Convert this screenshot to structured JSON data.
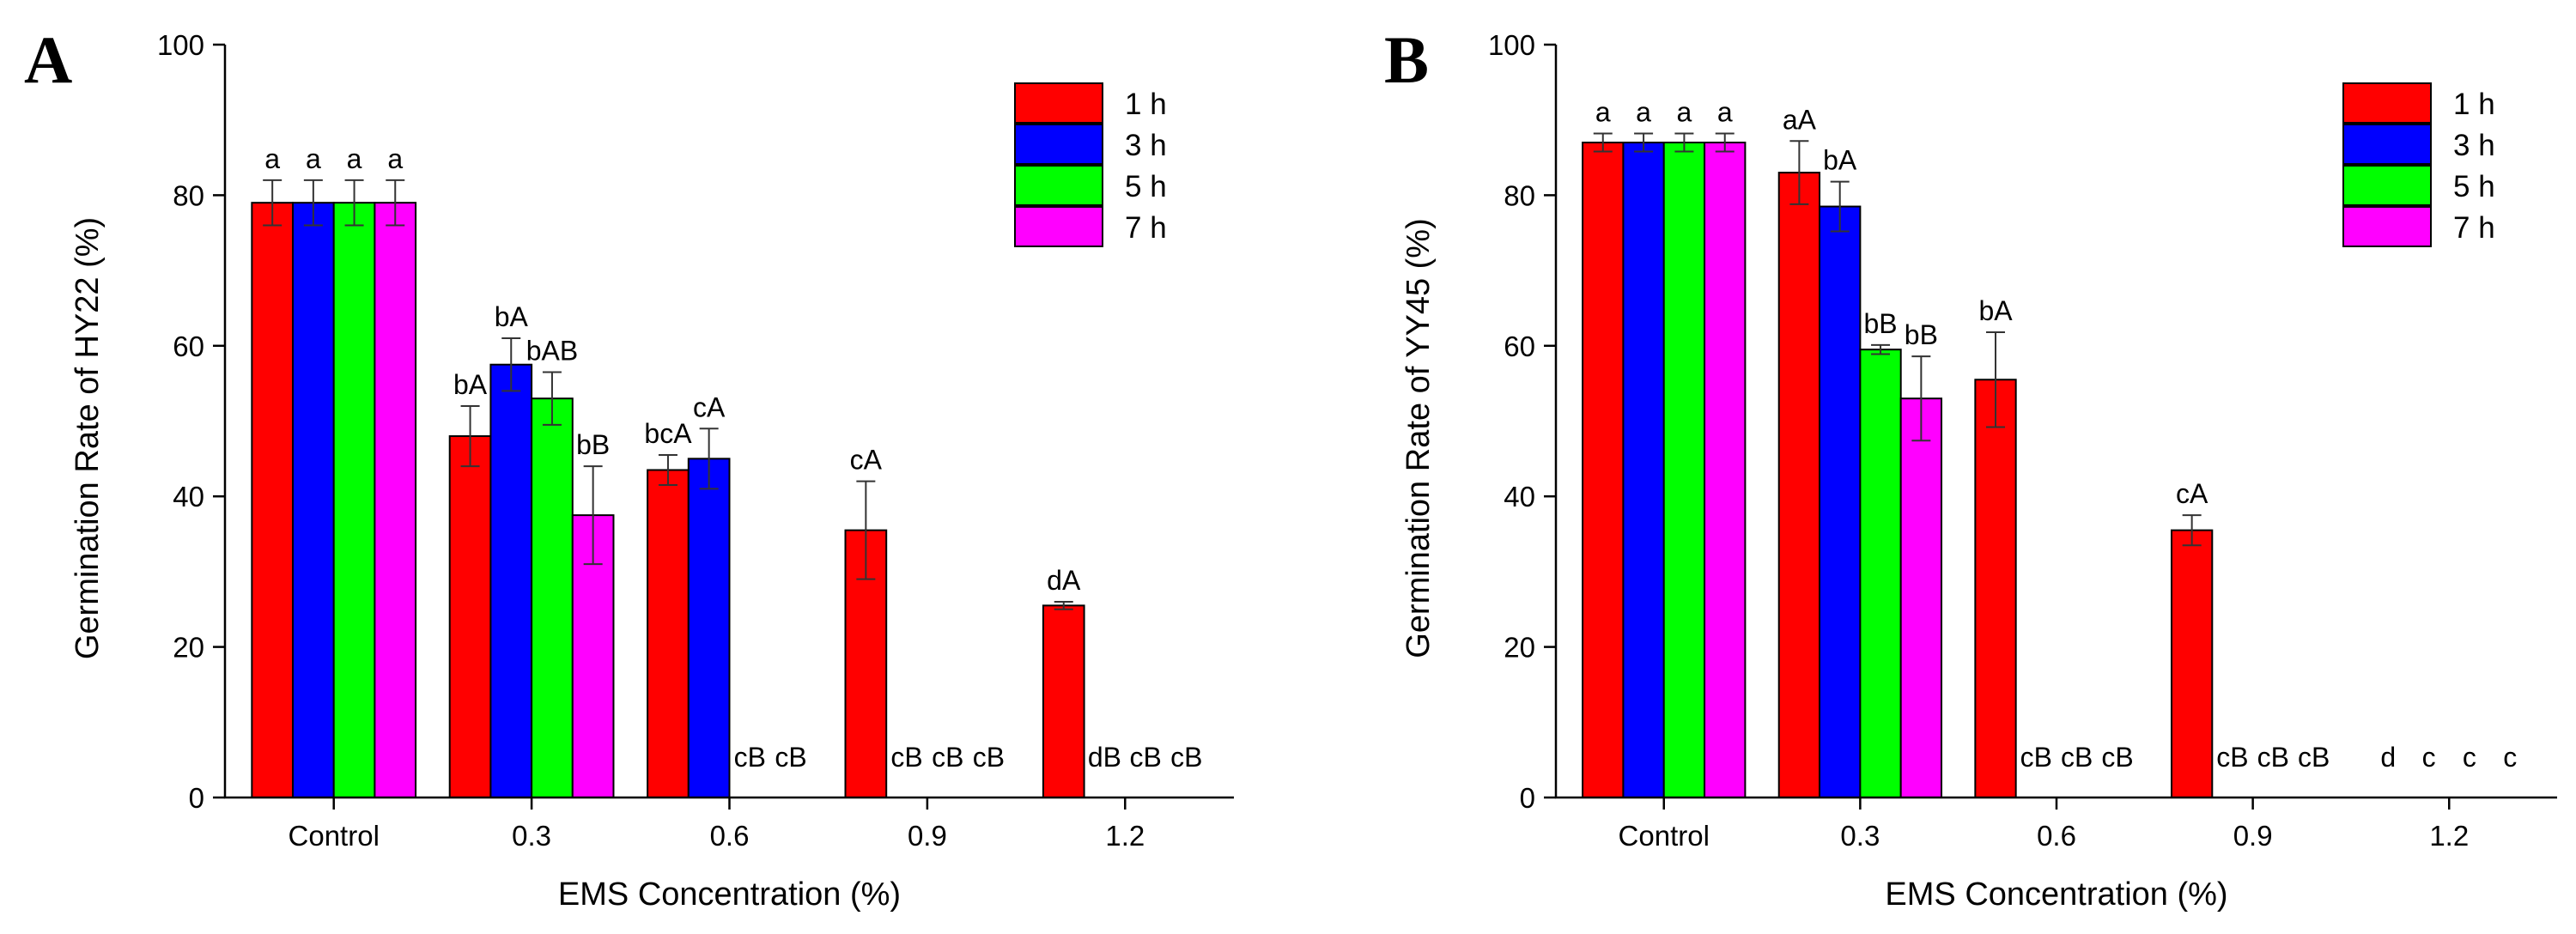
{
  "colors": {
    "1 h": "#ff0000",
    "3 h": "#0000ff",
    "5 h": "#00ff00",
    "7 h": "#ff00ff"
  },
  "chart_data": [
    {
      "panel": "A",
      "type": "bar",
      "xlabel": "EMS Concentration (%)",
      "ylabel": "Germination Rate of HY22 (%)",
      "ylim": [
        0,
        100
      ],
      "yticks": [
        0,
        20,
        40,
        60,
        80,
        100
      ],
      "categories": [
        "Control",
        "0.3",
        "0.6",
        "0.9",
        "1.2"
      ],
      "legend_position": "top-right",
      "series": [
        {
          "name": "1 h",
          "values": [
            79,
            48,
            43.5,
            35.5,
            25.5
          ],
          "errors": [
            3,
            4,
            2,
            6.5,
            0.5
          ],
          "labels": [
            "a",
            "bA",
            "bcA",
            "cA",
            "dA"
          ]
        },
        {
          "name": "3 h",
          "values": [
            79,
            57.5,
            45,
            0,
            0
          ],
          "errors": [
            3,
            3.5,
            4,
            0,
            0
          ],
          "labels": [
            "a",
            "bA",
            "cA",
            "cB",
            "dB"
          ]
        },
        {
          "name": "5 h",
          "values": [
            79,
            53,
            0,
            0,
            0
          ],
          "errors": [
            3,
            3.5,
            0,
            0,
            0
          ],
          "labels": [
            "a",
            "bAB",
            "cB",
            "cB",
            "cB"
          ]
        },
        {
          "name": "7 h",
          "values": [
            79,
            37.5,
            0,
            0,
            0
          ],
          "errors": [
            3,
            6.5,
            0,
            0,
            0
          ],
          "labels": [
            "a",
            "bB",
            "cB",
            "cB",
            "cB"
          ]
        }
      ]
    },
    {
      "panel": "B",
      "type": "bar",
      "xlabel": "EMS Concentration (%)",
      "ylabel": "Germination Rate of YY45 (%)",
      "ylim": [
        0,
        100
      ],
      "yticks": [
        0,
        20,
        40,
        60,
        80,
        100
      ],
      "categories": [
        "Control",
        "0.3",
        "0.6",
        "0.9",
        "1.2"
      ],
      "legend_position": "top-right",
      "series": [
        {
          "name": "1 h",
          "values": [
            87,
            83,
            55.5,
            35.5,
            0
          ],
          "errors": [
            1.2,
            4.2,
            6.3,
            2,
            0
          ],
          "labels": [
            "a",
            "aA",
            "bA",
            "cA",
            "d"
          ]
        },
        {
          "name": "3 h",
          "values": [
            87,
            78.5,
            0,
            0,
            0
          ],
          "errors": [
            1.2,
            3.3,
            0,
            0,
            0
          ],
          "labels": [
            "a",
            "bA",
            "cB",
            "cB",
            "c"
          ]
        },
        {
          "name": "5 h",
          "values": [
            87,
            59.5,
            0,
            0,
            0
          ],
          "errors": [
            1.2,
            0.6,
            0,
            0,
            0
          ],
          "labels": [
            "a",
            "bB",
            "cB",
            "cB",
            "c"
          ]
        },
        {
          "name": "7 h",
          "values": [
            87,
            53,
            0,
            0,
            0
          ],
          "errors": [
            1.2,
            5.6,
            0,
            0,
            0
          ],
          "labels": [
            "a",
            "bB",
            "cB",
            "cB",
            "c"
          ]
        }
      ]
    }
  ]
}
